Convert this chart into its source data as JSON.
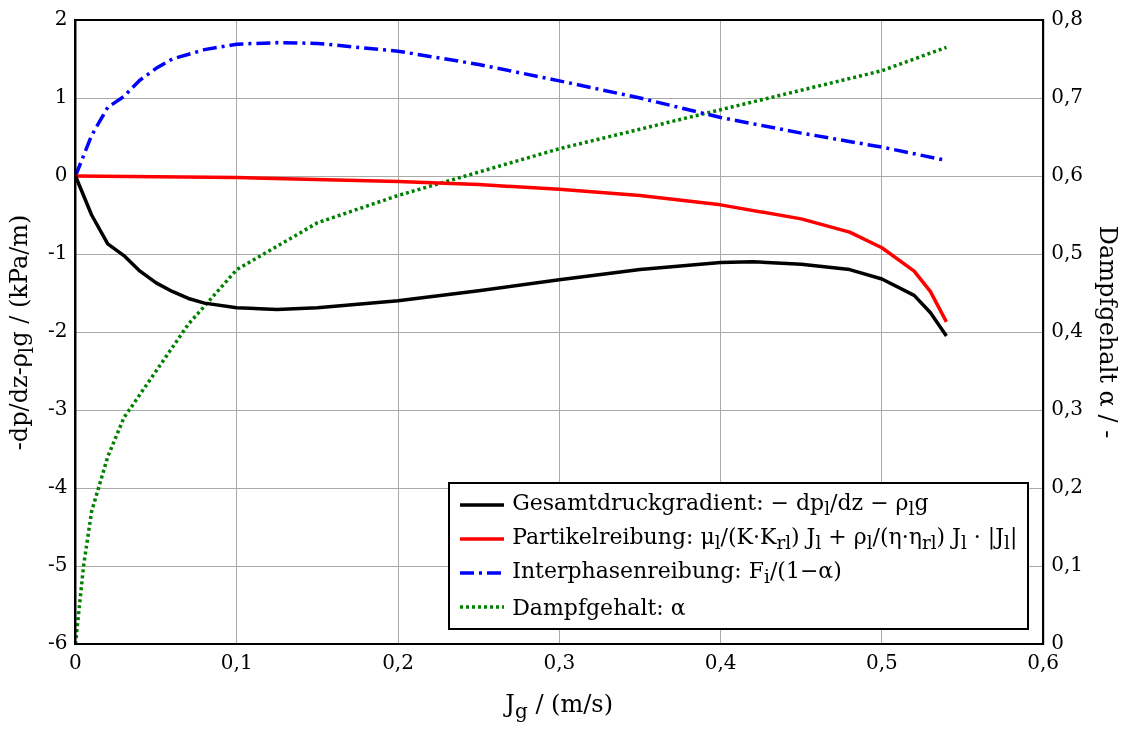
{
  "chart_data": {
    "type": "line",
    "xlabel": "J$_{g}$ / (m/s)",
    "ylabel": "-dp/dz-ρ$_{l}$g / (kPa/m)",
    "y2label": "Dampfgehalt α / -",
    "xlim": [
      0,
      0.6
    ],
    "xticks": [
      0,
      {
        "value": 0.1,
        "label": "0,1"
      },
      {
        "value": 0.2,
        "label": "0,2"
      },
      {
        "value": 0.3,
        "label": "0,3"
      },
      {
        "value": 0.4,
        "label": "0,4"
      },
      {
        "value": 0.5,
        "label": "0,5"
      },
      {
        "value": 0.6,
        "label": "0,6"
      }
    ],
    "ylim": [
      -6,
      2
    ],
    "yticks": [
      -6,
      -5,
      -4,
      -3,
      -2,
      -1,
      0,
      1,
      2
    ],
    "y2lim": [
      0,
      0.8
    ],
    "y2ticks": [
      0,
      {
        "value": 0.1,
        "label": "0,1"
      },
      {
        "value": 0.2,
        "label": "0,2"
      },
      {
        "value": 0.3,
        "label": "0,3"
      },
      {
        "value": 0.4,
        "label": "0,4"
      },
      {
        "value": 0.5,
        "label": "0,5"
      },
      {
        "value": 0.6,
        "label": "0,6"
      },
      {
        "value": 0.7,
        "label": "0,7"
      },
      {
        "value": 0.8,
        "label": "0,8"
      }
    ],
    "grid": true,
    "legend": "bottom right",
    "marker": "none",
    "series": [
      {
        "name": "Gesamtdruckgradient: − dp$_{l}$/dz − ρ$_{l}$g",
        "color": "#000000",
        "line_style": "solid",
        "x": [
          0,
          0.01,
          0.02,
          0.03,
          0.04,
          0.05,
          0.06,
          0.07,
          0.08,
          0.1,
          0.125,
          0.15,
          0.2,
          0.25,
          0.3,
          0.35,
          0.4,
          0.42,
          0.45,
          0.48,
          0.5,
          0.52,
          0.53,
          0.54
        ],
        "values": [
          0,
          -0.5,
          -0.87,
          -1.02,
          -1.22,
          -1.37,
          -1.48,
          -1.57,
          -1.63,
          -1.69,
          -1.71,
          -1.69,
          -1.6,
          -1.47,
          -1.33,
          -1.2,
          -1.11,
          -1.1,
          -1.13,
          -1.2,
          -1.32,
          -1.53,
          -1.75,
          -2.05
        ]
      },
      {
        "name": "Partikelreibung: μ$_{l}$/(K·K$_{rl}$) J$_{l}$ + ρ$_{l}$/(η·η$_{rl}$) J$_{l}$ · |J$_{l}$|",
        "color": "#ff0000",
        "line_style": "solid",
        "x": [
          0,
          0.1,
          0.2,
          0.25,
          0.3,
          0.35,
          0.4,
          0.45,
          0.48,
          0.5,
          0.52,
          0.53,
          0.54
        ],
        "values": [
          0,
          -0.02,
          -0.07,
          -0.11,
          -0.17,
          -0.25,
          -0.37,
          -0.55,
          -0.72,
          -0.92,
          -1.22,
          -1.48,
          -1.87
        ]
      },
      {
        "name": "Interphasenreibung: F$_{i}$/(1−α)",
        "color": "#0000ff",
        "line_style": "dashed",
        "x": [
          0,
          0.01,
          0.02,
          0.03,
          0.04,
          0.05,
          0.06,
          0.08,
          0.1,
          0.125,
          0.15,
          0.2,
          0.25,
          0.3,
          0.35,
          0.4,
          0.45,
          0.5,
          0.54
        ],
        "values": [
          0,
          0.52,
          0.88,
          1.02,
          1.23,
          1.38,
          1.5,
          1.62,
          1.69,
          1.71,
          1.7,
          1.6,
          1.43,
          1.22,
          1.0,
          0.75,
          0.55,
          0.37,
          0.2
        ]
      },
      {
        "name": "Dampfgehalt: α",
        "color": "#008000",
        "line_style": "dotted",
        "axis": "y2",
        "x": [
          0,
          0.005,
          0.01,
          0.02,
          0.03,
          0.05,
          0.07,
          0.1,
          0.15,
          0.2,
          0.25,
          0.3,
          0.35,
          0.4,
          0.45,
          0.5,
          0.54
        ],
        "values": [
          0,
          0.1,
          0.17,
          0.24,
          0.29,
          0.35,
          0.41,
          0.48,
          0.54,
          0.575,
          0.605,
          0.635,
          0.66,
          0.685,
          0.71,
          0.735,
          0.765
        ]
      }
    ]
  }
}
